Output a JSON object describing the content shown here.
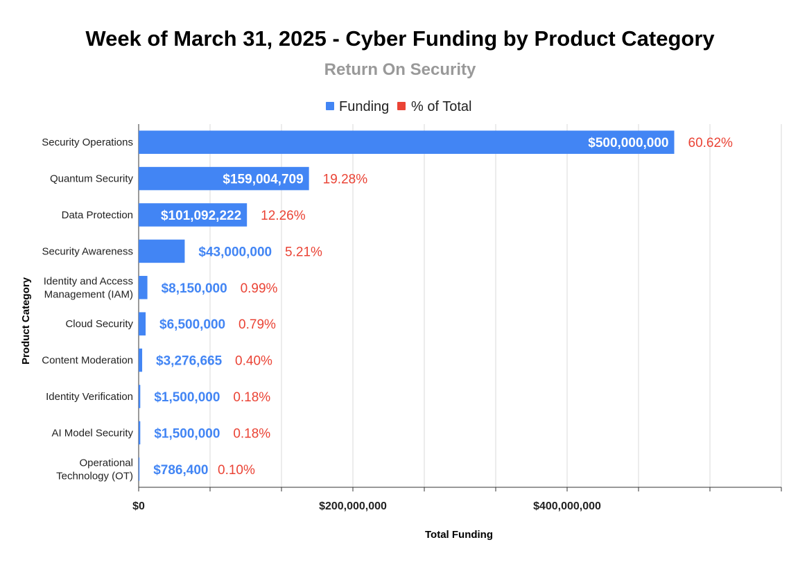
{
  "colors": {
    "funding": "#4285F4",
    "percent": "#EA4335",
    "grid": "#d9d9d9",
    "axis": "#333333",
    "inside_label": "#ffffff"
  },
  "chart_data": {
    "type": "bar",
    "orientation": "horizontal",
    "title": "Week of March 31, 2025 - Cyber Funding by Product Category",
    "subtitle": "Return On Security",
    "xlabel": "Total Funding",
    "ylabel": "Product Category",
    "legend_position": "top-center",
    "legend": [
      "Funding",
      "% of Total"
    ],
    "xlim": [
      0,
      600000000
    ],
    "x_ticks": [
      {
        "value": 0,
        "label": "$0"
      },
      {
        "value": 200000000,
        "label": "$200,000,000"
      },
      {
        "value": 400000000,
        "label": "$400,000,000"
      }
    ],
    "grid": true,
    "categories": [
      [
        "Security Operations"
      ],
      [
        "Quantum Security"
      ],
      [
        "Data Protection"
      ],
      [
        "Security Awareness"
      ],
      [
        "Identity and Access",
        "Management (IAM)"
      ],
      [
        "Cloud Security"
      ],
      [
        "Content Moderation"
      ],
      [
        "Identity Verification"
      ],
      [
        "AI Model Security"
      ],
      [
        "Operational",
        "Technology (OT)"
      ]
    ],
    "series": [
      {
        "name": "Funding",
        "values": [
          500000000,
          159004709,
          101092222,
          43000000,
          8150000,
          6500000,
          3276665,
          1500000,
          1500000,
          786400
        ],
        "labels": [
          "$500,000,000",
          "$159,004,709",
          "$101,092,222",
          "$43,000,000",
          "$8,150,000",
          "$6,500,000",
          "$3,276,665",
          "$1,500,000",
          "$1,500,000",
          "$786,400"
        ]
      },
      {
        "name": "% of Total",
        "labels": [
          "60.62%",
          "19.28%",
          "12.26%",
          "5.21%",
          "0.99%",
          "0.79%",
          "0.40%",
          "0.18%",
          "0.18%",
          "0.10%"
        ]
      }
    ]
  }
}
